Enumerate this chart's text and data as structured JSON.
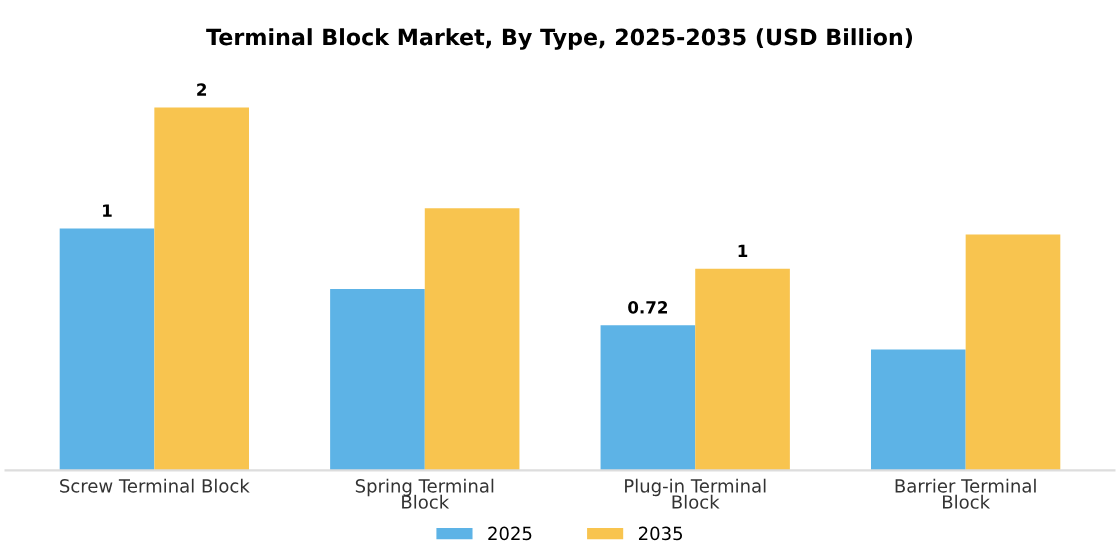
{
  "chart_data": {
    "type": "bar",
    "title": "Terminal Block Market, By Type, 2025-2035 (USD Billion)",
    "categories": [
      "Screw Terminal Block",
      "Spring Terminal\nBlock",
      "Plug-in Terminal\nBlock",
      "Barrier Terminal\nBlock"
    ],
    "series": [
      {
        "name": "2025",
        "color": "#5db3e6",
        "values": [
          1.2,
          0.9,
          0.72,
          0.6
        ],
        "value_labels": [
          "1",
          null,
          "0.72",
          null
        ]
      },
      {
        "name": "2035",
        "color": "#f8c44f",
        "values": [
          1.8,
          1.3,
          1.0,
          1.17
        ],
        "value_labels": [
          "2",
          null,
          "1",
          null
        ]
      }
    ],
    "grid": false,
    "legend": "bottom"
  }
}
